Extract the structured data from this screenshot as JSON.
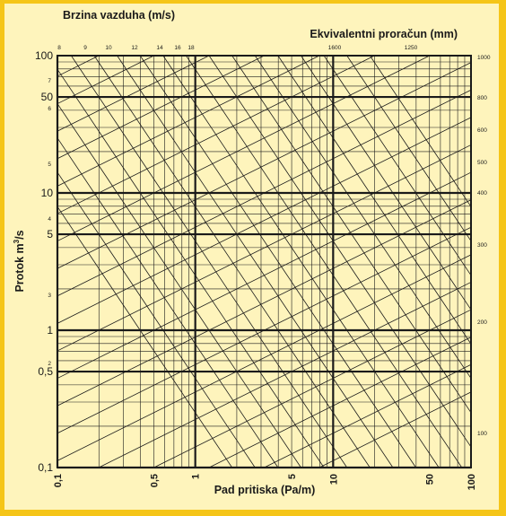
{
  "chart_data": {
    "type": "line",
    "subtype": "duct friction nomogram",
    "title_left": "Brzina vazduha (m/s)",
    "title_right": "Ekvivalentni proračun (mm)",
    "xlabel": "Pad pritiska (Pa/m)",
    "ylabel_main": "Protok m",
    "ylabel_sup": "3",
    "ylabel_end": "/s",
    "x_scale": "log",
    "y_scale": "log",
    "xlim": [
      0.1,
      100
    ],
    "ylim": [
      0.1,
      100
    ],
    "x_tick_values": [
      0.1,
      0.5,
      1,
      5,
      10,
      50,
      100
    ],
    "x_tick_labels": [
      "0,1",
      "0,5",
      "1",
      "5",
      "10",
      "50",
      "100"
    ],
    "y_tick_values": [
      100,
      50,
      10,
      5,
      1,
      0.5,
      0.1
    ],
    "y_tick_labels": [
      "100",
      "50",
      "10",
      "5",
      "1",
      "0,5",
      "0,1"
    ],
    "y_small_labels": [
      "7",
      "6",
      "5",
      "4",
      "3",
      "2"
    ],
    "velocity_labels": [
      "8",
      "9",
      "10",
      "12",
      "14",
      "16",
      "18"
    ],
    "diameter_top_labels": [
      "1600",
      "1250"
    ],
    "diameter_right_labels": [
      "1000",
      "800",
      "600",
      "500",
      "400",
      "300",
      "200",
      "100"
    ],
    "grid": true,
    "colors": {
      "border": "#f5c518",
      "paper": "#fef4bc",
      "line": "#1a1a1a"
    }
  }
}
